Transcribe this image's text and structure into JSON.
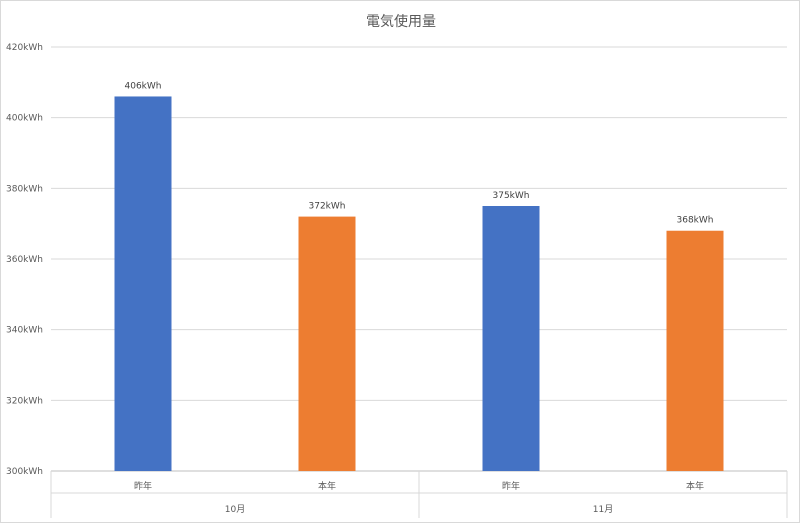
{
  "chart_data": {
    "type": "bar",
    "title": "電気使用量",
    "xlabel": "",
    "ylabel": "",
    "unit": "kWh",
    "ylim": [
      300,
      420
    ],
    "ytick_step": 20,
    "grid": true,
    "legend": "none",
    "groups": [
      "10月",
      "11月"
    ],
    "categories": [
      "昨年",
      "本年",
      "昨年",
      "本年"
    ],
    "group_of_category": [
      0,
      0,
      1,
      1
    ],
    "values": [
      406,
      372,
      375,
      368
    ],
    "data_labels": [
      "406kWh",
      "372kWh",
      "375kWh",
      "368kWh"
    ],
    "bar_colors": [
      "#4472C4",
      "#ED7D31",
      "#4472C4",
      "#ED7D31"
    ]
  }
}
